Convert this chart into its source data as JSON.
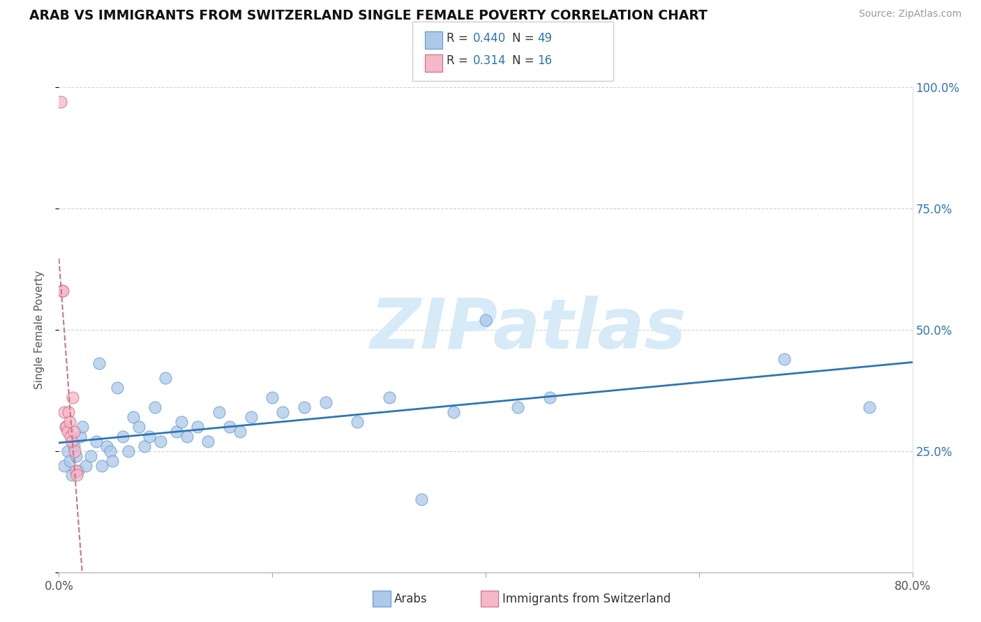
{
  "title": "ARAB VS IMMIGRANTS FROM SWITZERLAND SINGLE FEMALE POVERTY CORRELATION CHART",
  "source": "Source: ZipAtlas.com",
  "ylabel": "Single Female Poverty",
  "xlim": [
    0,
    0.8
  ],
  "ylim": [
    0,
    1.0
  ],
  "arab_R": 0.44,
  "arab_N": 49,
  "swiss_R": 0.314,
  "swiss_N": 16,
  "arab_color": "#adc8e8",
  "arab_edge_color": "#5b9bd5",
  "swiss_color": "#f4b8c8",
  "swiss_edge_color": "#d4687a",
  "trend_arab_color": "#2e75b6",
  "trend_swiss_color": "#c9738a",
  "legend_color": "#2e75b6",
  "watermark_color": "#d6eaf8",
  "arab_x": [
    0.005,
    0.008,
    0.01,
    0.012,
    0.014,
    0.016,
    0.018,
    0.02,
    0.022,
    0.025,
    0.03,
    0.035,
    0.038,
    0.04,
    0.045,
    0.048,
    0.05,
    0.055,
    0.06,
    0.065,
    0.07,
    0.075,
    0.08,
    0.085,
    0.09,
    0.095,
    0.1,
    0.11,
    0.115,
    0.12,
    0.13,
    0.14,
    0.15,
    0.16,
    0.17,
    0.18,
    0.2,
    0.21,
    0.23,
    0.25,
    0.28,
    0.31,
    0.34,
    0.37,
    0.4,
    0.43,
    0.46,
    0.68,
    0.76
  ],
  "arab_y": [
    0.22,
    0.25,
    0.23,
    0.2,
    0.26,
    0.24,
    0.21,
    0.28,
    0.3,
    0.22,
    0.24,
    0.27,
    0.43,
    0.22,
    0.26,
    0.25,
    0.23,
    0.38,
    0.28,
    0.25,
    0.32,
    0.3,
    0.26,
    0.28,
    0.34,
    0.27,
    0.4,
    0.29,
    0.31,
    0.28,
    0.3,
    0.27,
    0.33,
    0.3,
    0.29,
    0.32,
    0.36,
    0.33,
    0.34,
    0.35,
    0.31,
    0.36,
    0.15,
    0.33,
    0.52,
    0.34,
    0.36,
    0.44,
    0.34
  ],
  "swiss_x": [
    0.002,
    0.003,
    0.004,
    0.005,
    0.006,
    0.007,
    0.008,
    0.009,
    0.01,
    0.011,
    0.012,
    0.013,
    0.014,
    0.015,
    0.016,
    0.017
  ],
  "swiss_y": [
    0.97,
    0.58,
    0.58,
    0.33,
    0.3,
    0.3,
    0.29,
    0.33,
    0.31,
    0.28,
    0.27,
    0.36,
    0.29,
    0.25,
    0.21,
    0.2
  ]
}
